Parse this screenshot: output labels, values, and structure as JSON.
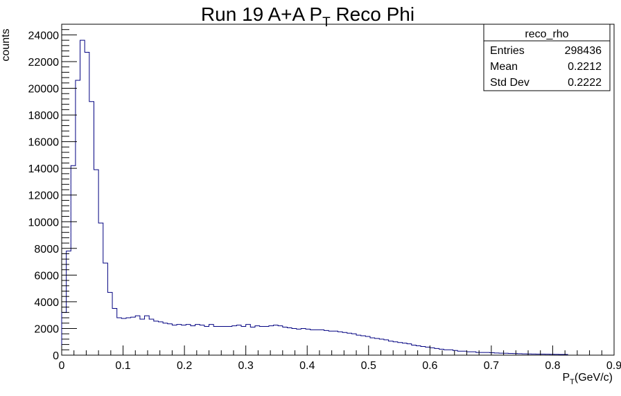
{
  "chart_data": {
    "type": "bar",
    "title": {
      "main": "Run 19 A+A P",
      "sub": "T",
      "rest": " Reco Phi"
    },
    "xlabel": {
      "main": "P",
      "sub": "T",
      "rest": "(GeV/c)"
    },
    "ylabel": "counts",
    "xlim": [
      0,
      0.9
    ],
    "ylim": [
      0,
      24800
    ],
    "x_ticks": [
      0,
      0.1,
      0.2,
      0.3,
      0.4,
      0.5,
      0.6,
      0.7,
      0.8,
      0.9
    ],
    "x_tick_labels": [
      "0",
      "0.1",
      "0.2",
      "0.3",
      "0.4",
      "0.5",
      "0.6",
      "0.7",
      "0.8",
      "0.9"
    ],
    "y_ticks": [
      0,
      2000,
      4000,
      6000,
      8000,
      10000,
      12000,
      14000,
      16000,
      18000,
      20000,
      22000,
      24000
    ],
    "y_tick_labels": [
      "0",
      "2000",
      "4000",
      "6000",
      "8000",
      "10000",
      "12000",
      "14000",
      "16000",
      "18000",
      "20000",
      "22000",
      "24000"
    ],
    "bin_width": 0.0075,
    "bin_edges_start": 0,
    "values": [
      3200,
      7800,
      14200,
      20600,
      23600,
      22700,
      19000,
      13900,
      9900,
      6900,
      4700,
      3500,
      2800,
      2750,
      2800,
      2850,
      2950,
      2700,
      2950,
      2700,
      2550,
      2500,
      2400,
      2350,
      2250,
      2300,
      2250,
      2300,
      2200,
      2300,
      2250,
      2150,
      2300,
      2150,
      2150,
      2150,
      2150,
      2200,
      2250,
      2150,
      2300,
      2100,
      2200,
      2150,
      2150,
      2200,
      2250,
      2200,
      2100,
      2050,
      2000,
      1950,
      2000,
      1950,
      1900,
      1900,
      1900,
      1850,
      1800,
      1800,
      1750,
      1700,
      1650,
      1600,
      1500,
      1450,
      1400,
      1300,
      1250,
      1200,
      1150,
      1050,
      1000,
      950,
      900,
      850,
      750,
      700,
      650,
      600,
      550,
      500,
      450,
      400,
      400,
      350,
      300,
      300,
      250,
      250,
      200,
      200,
      200,
      180,
      160,
      150,
      140,
      130,
      120,
      110,
      100,
      90,
      85,
      80,
      75,
      70,
      65,
      60,
      55,
      50
    ],
    "grid": false,
    "line_color": "#000080",
    "stats_box": {
      "name": "reco_rho",
      "rows": [
        {
          "label": "Entries",
          "value": "298436"
        },
        {
          "label": "Mean",
          "value": "0.2212"
        },
        {
          "label": "Std Dev",
          "value": "0.2222"
        }
      ],
      "placement": "top-right"
    }
  }
}
